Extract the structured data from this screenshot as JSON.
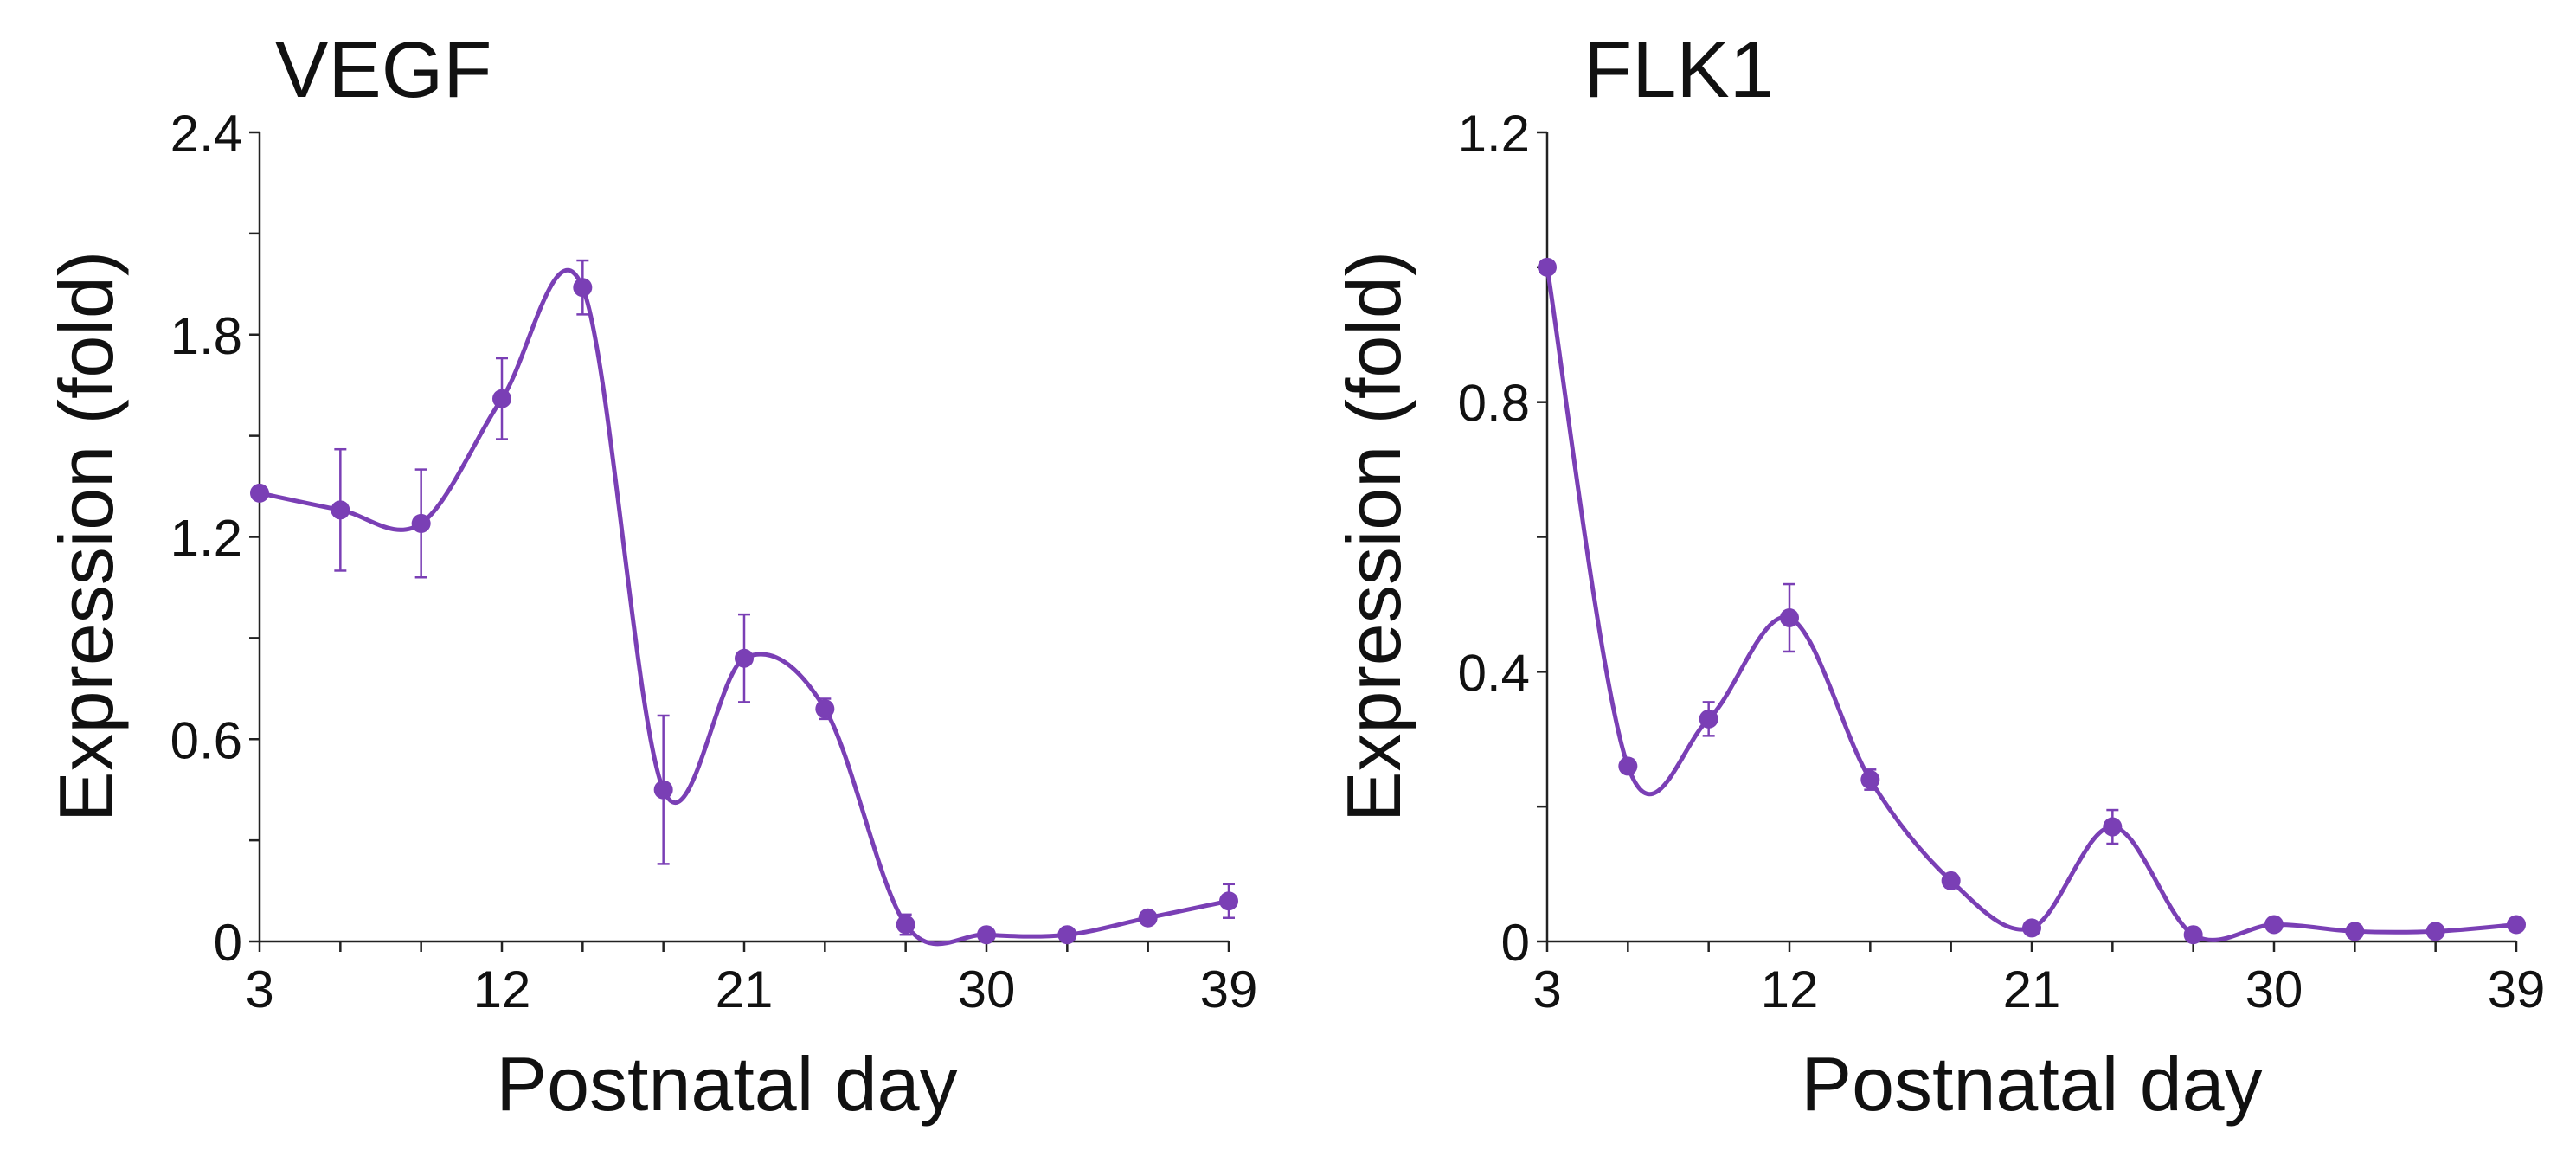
{
  "figure": {
    "accent_color": "#7a3fb5"
  },
  "chart_data": [
    {
      "type": "line",
      "title": "VEGF",
      "xlabel": "Postnatal day",
      "ylabel": "Expression (fold)",
      "xlim": [
        3,
        39
      ],
      "ylim": [
        0,
        2.4
      ],
      "x_ticks": [
        3,
        6,
        9,
        12,
        15,
        18,
        21,
        24,
        27,
        30,
        33,
        36,
        39
      ],
      "x_tick_labels": [
        "3",
        "",
        "",
        "12",
        "",
        "",
        "21",
        "",
        "",
        "30",
        "",
        "",
        "39"
      ],
      "y_ticks": [
        0,
        0.3,
        0.6,
        0.9,
        1.2,
        1.5,
        1.8,
        2.1,
        2.4
      ],
      "y_tick_labels": [
        "0",
        "",
        "0.6",
        "",
        "1.2",
        "",
        "1.8",
        "",
        "2.4"
      ],
      "series": [
        {
          "name": "VEGF",
          "color": "#7a3fb5",
          "x": [
            3,
            6,
            9,
            12,
            15,
            18,
            21,
            24,
            27,
            30,
            33,
            36,
            39
          ],
          "values": [
            1.33,
            1.28,
            1.24,
            1.61,
            1.94,
            0.45,
            0.84,
            0.69,
            0.05,
            0.02,
            0.02,
            0.07,
            0.12
          ],
          "error": [
            0.0,
            0.18,
            0.16,
            0.12,
            0.08,
            0.22,
            0.13,
            0.03,
            0.03,
            0.0,
            0.0,
            0.0,
            0.05
          ]
        }
      ]
    },
    {
      "type": "line",
      "title": "FLK1",
      "xlabel": "Postnatal day",
      "ylabel": "Expression (fold)",
      "xlim": [
        3,
        39
      ],
      "ylim": [
        0,
        1.2
      ],
      "x_ticks": [
        3,
        6,
        9,
        12,
        15,
        18,
        21,
        24,
        27,
        30,
        33,
        36,
        39
      ],
      "x_tick_labels": [
        "3",
        "",
        "",
        "12",
        "",
        "",
        "21",
        "",
        "",
        "30",
        "",
        "",
        "39"
      ],
      "y_ticks": [
        0,
        0.2,
        0.4,
        0.6,
        0.8,
        1.0,
        1.2
      ],
      "y_tick_labels": [
        "0",
        "",
        "0.4",
        "",
        "0.8",
        "",
        "1.2"
      ],
      "series": [
        {
          "name": "FLK1",
          "color": "#7a3fb5",
          "x": [
            3,
            6,
            9,
            12,
            15,
            18,
            21,
            24,
            27,
            30,
            33,
            36,
            39
          ],
          "values": [
            1.0,
            0.26,
            0.33,
            0.48,
            0.24,
            0.09,
            0.02,
            0.17,
            0.01,
            0.025,
            0.015,
            0.015,
            0.025
          ],
          "error": [
            0.0,
            0.01,
            0.025,
            0.05,
            0.015,
            0.01,
            0.005,
            0.025,
            0.005,
            0.0,
            0.0,
            0.0,
            0.0
          ]
        }
      ]
    }
  ]
}
